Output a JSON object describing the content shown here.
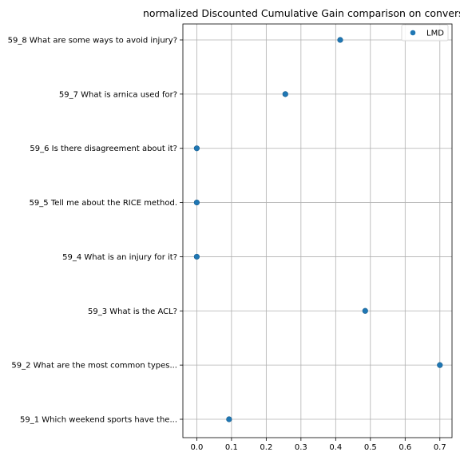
{
  "chart_data": {
    "type": "scatter",
    "title": "normalized Discounted Cumulative Gain comparison on conversat",
    "xlabel": "",
    "ylabel": "",
    "xlim": [
      -0.04,
      0.735
    ],
    "x_ticks": [
      0.0,
      0.1,
      0.2,
      0.3,
      0.4,
      0.5,
      0.6,
      0.7
    ],
    "x_tick_labels": [
      "0.0",
      "0.1",
      "0.2",
      "0.3",
      "0.4",
      "0.5",
      "0.6",
      "0.7"
    ],
    "categories": [
      "59_1 Which weekend sports have the...",
      "59_2 What are the most common types...",
      "59_3 What is the ACL?",
      "59_4 What is an injury for it?",
      "59_5 Tell me about the RICE method.",
      "59_6 Is there disagreement about it?",
      "59_7 What is arnica used for?",
      "59_8 What are some ways to avoid injury?"
    ],
    "series": [
      {
        "name": "LMD",
        "color": "#1f77b4",
        "values": [
          0.093,
          0.7,
          0.485,
          0.0,
          0.0,
          0.0,
          0.255,
          0.413
        ]
      }
    ],
    "grid": true,
    "legend_position": "top-right"
  }
}
